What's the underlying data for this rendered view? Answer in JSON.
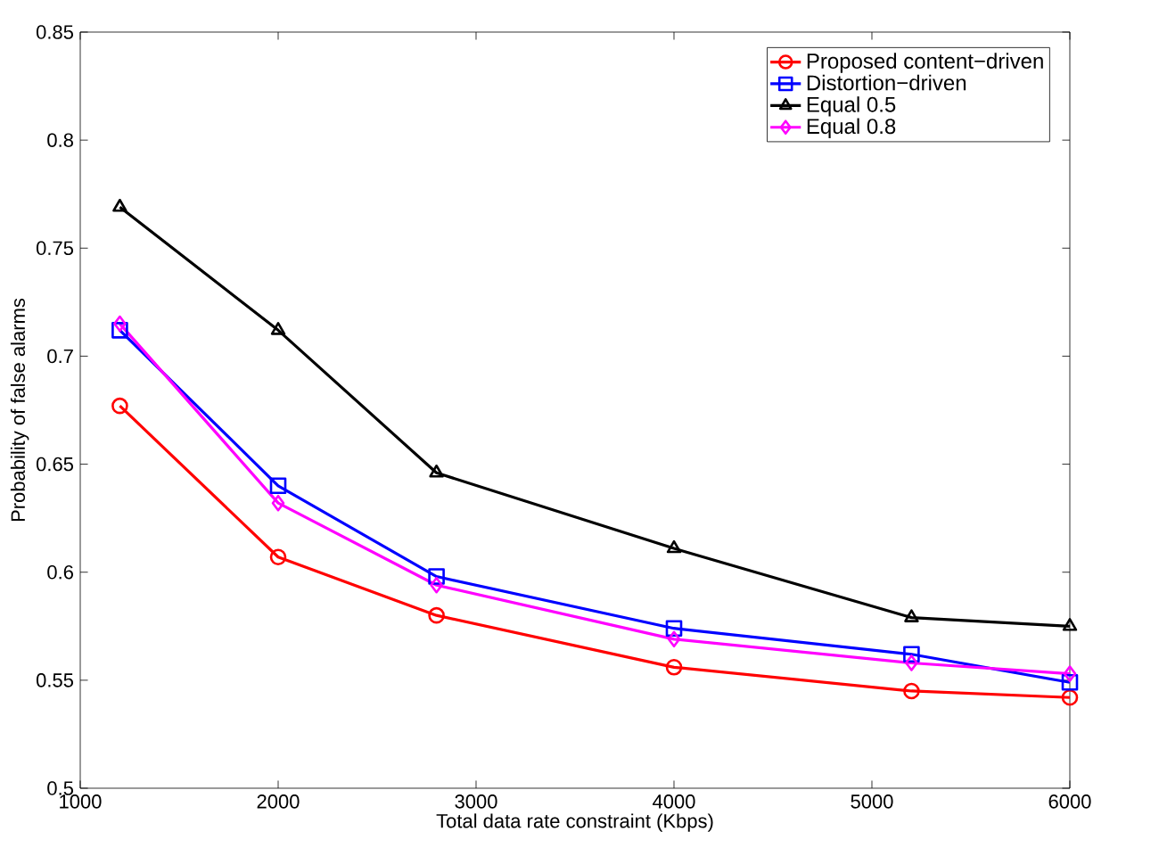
{
  "chart_data": {
    "type": "line",
    "xlabel": "Total data rate constraint (Kbps)",
    "ylabel": "Probability of false alarms",
    "x": [
      1200,
      2000,
      2800,
      4000,
      5200,
      6000
    ],
    "series": [
      {
        "name": "Proposed content−driven",
        "color": "#ff0000",
        "marker": "circle",
        "values": [
          0.677,
          0.607,
          0.58,
          0.556,
          0.545,
          0.542
        ]
      },
      {
        "name": "Distortion−driven",
        "color": "#0000ff",
        "marker": "square",
        "values": [
          0.712,
          0.64,
          0.598,
          0.574,
          0.562,
          0.549
        ]
      },
      {
        "name": "Equal 0.5",
        "color": "#000000",
        "marker": "triangle",
        "values": [
          0.769,
          0.712,
          0.646,
          0.611,
          0.579,
          0.575
        ]
      },
      {
        "name": "Equal 0.8",
        "color": "#ff00ff",
        "marker": "diamond",
        "values": [
          0.715,
          0.632,
          0.594,
          0.569,
          0.558,
          0.553
        ]
      }
    ],
    "xlim": [
      1000,
      6000
    ],
    "xticks": [
      1000,
      2000,
      3000,
      4000,
      5000,
      6000
    ],
    "ylim": [
      0.5,
      0.85
    ],
    "yticks": [
      0.5,
      0.55,
      0.6,
      0.65,
      0.7,
      0.75,
      0.8,
      0.85
    ],
    "legend": "top right",
    "grid": false,
    "line_style": "solid"
  }
}
